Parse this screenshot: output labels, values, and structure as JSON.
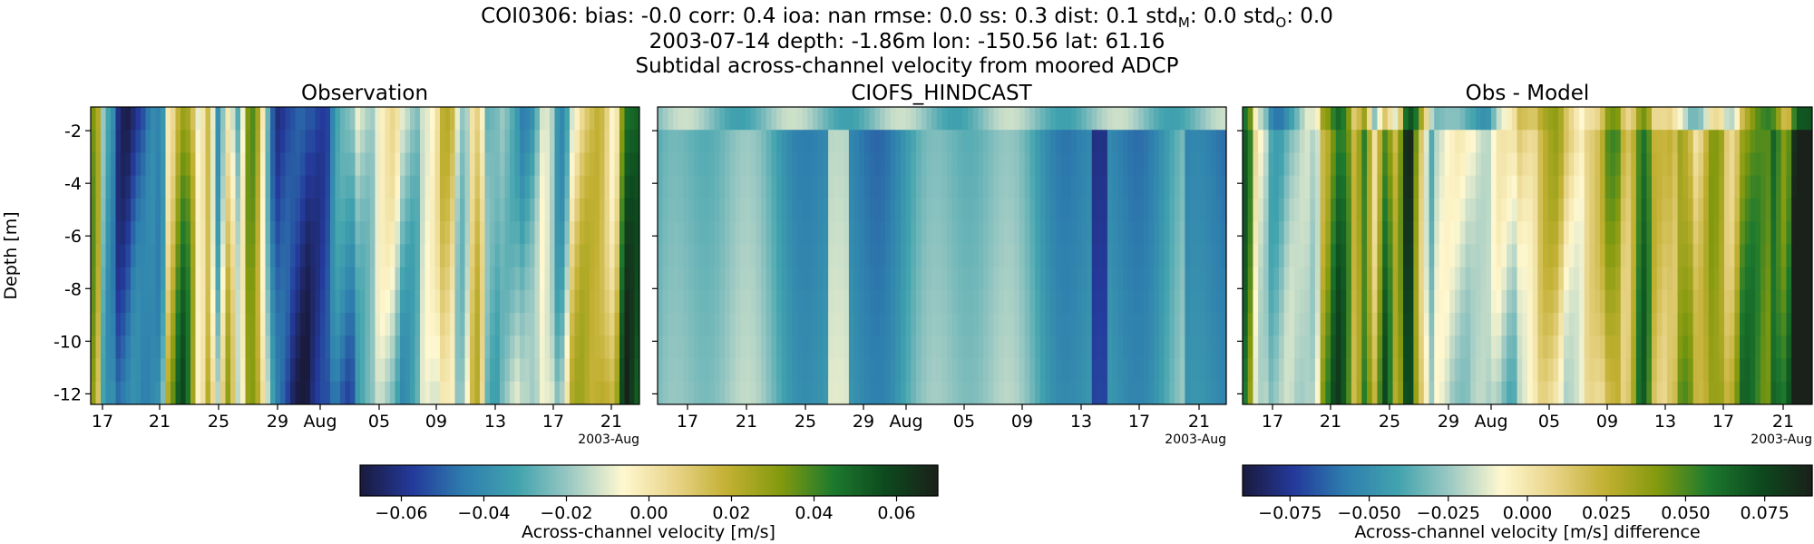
{
  "title": {
    "line1": "COI0306: bias: -0.0  corr: 0.4  ioa: nan  rmse: 0.0  ss: 0.3  dist: 0.1  std",
    "line1_stdm_sub": "M",
    "line1_mid": ": 0.0  std",
    "line1_stdo_sub": "O",
    "line1_end": ": 0.0",
    "line2": "2003-07-14 depth: -1.86m lon: -150.56 lat: 61.16",
    "line3": "Subtidal across-channel velocity from moored ADCP"
  },
  "chart_data": [
    {
      "type": "heatmap",
      "title": "Observation",
      "ylabel": "Depth [m]",
      "ylim": [
        -12.4,
        -1.1
      ],
      "yticks": [
        "-2",
        "-4",
        "-6",
        "-8",
        "-10",
        "-12"
      ],
      "xticks": [
        "17",
        "21",
        "25",
        "29",
        "Aug",
        "05",
        "09",
        "13",
        "17",
        "21"
      ],
      "x_offset_label": "2003-Aug",
      "colorbar_group": 0
    },
    {
      "type": "heatmap",
      "title": "CIOFS_HINDCAST",
      "ylim": [
        -12.4,
        -1.1
      ],
      "xticks": [
        "17",
        "21",
        "25",
        "29",
        "Aug",
        "05",
        "09",
        "13",
        "17",
        "21"
      ],
      "x_offset_label": "2003-Aug",
      "colorbar_group": 0
    },
    {
      "type": "heatmap",
      "title": "Obs - Model",
      "ylim": [
        -12.4,
        -1.1
      ],
      "xticks": [
        "17",
        "21",
        "25",
        "29",
        "Aug",
        "05",
        "09",
        "13",
        "17",
        "21"
      ],
      "x_offset_label": "2003-Aug",
      "colorbar_group": 1
    }
  ],
  "colorbars": [
    {
      "label": "Across-channel velocity [m/s]",
      "range": [
        -0.07,
        0.07
      ],
      "ticks": [
        "−0.06",
        "−0.04",
        "−0.02",
        "0.00",
        "0.02",
        "0.04",
        "0.06"
      ],
      "tick_values": [
        -0.06,
        -0.04,
        -0.02,
        0.0,
        0.02,
        0.04,
        0.06
      ]
    },
    {
      "label": "Across-channel velocity [m/s] difference",
      "range": [
        -0.09,
        0.09
      ],
      "ticks": [
        "−0.075",
        "−0.050",
        "−0.025",
        "0.000",
        "0.025",
        "0.050",
        "0.075"
      ],
      "tick_values": [
        -0.075,
        -0.05,
        -0.025,
        0.0,
        0.025,
        0.05,
        0.075
      ]
    }
  ],
  "colormap": [
    "#1a1a3c",
    "#243a9c",
    "#2e7fae",
    "#41a3ae",
    "#9cc9c3",
    "#fff8d0",
    "#e8d488",
    "#c2b032",
    "#849a0e",
    "#1d7a2e",
    "#0d4a1e",
    "#1a201a"
  ]
}
